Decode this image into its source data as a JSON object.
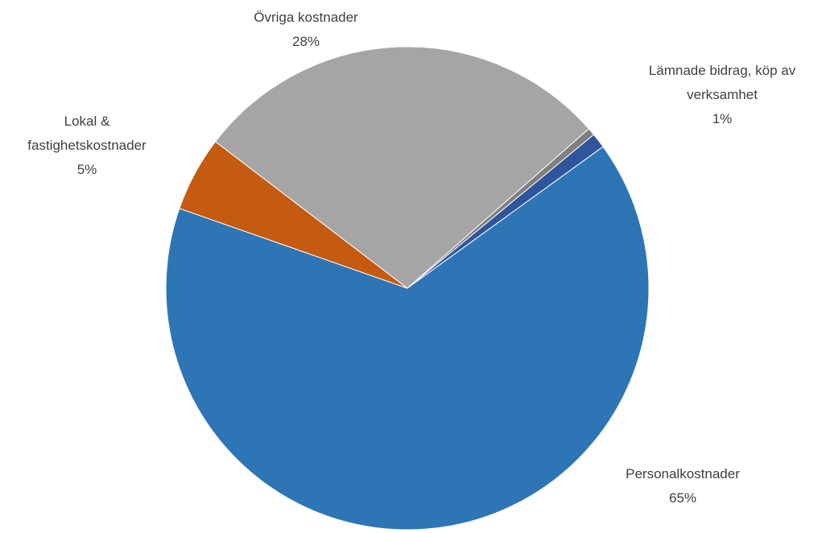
{
  "chart_data": {
    "type": "pie",
    "categories": [
      "Lämnade bidrag, köp av verksamhet",
      "Personalkostnader",
      "Lokal & fastighetskostnader",
      "Övriga kostnader",
      null
    ],
    "values": [
      1,
      65,
      5,
      28,
      0.5
    ],
    "value_labels": [
      "1%",
      "65%",
      "5%",
      "28%",
      null
    ],
    "colors": [
      "#2f569c",
      "#2e75b6",
      "#c55a11",
      "#a5a5a5",
      "#7f7f7f"
    ]
  }
}
